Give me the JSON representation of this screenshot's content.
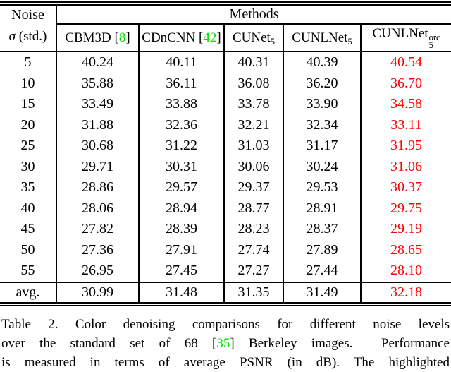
{
  "colors": {
    "best_value_red": "#fe0000",
    "citation_green": "#00e400"
  },
  "table": {
    "header": {
      "noise_line1": "Noise",
      "sigma": "σ",
      "std_suffix": " (std.)",
      "methods_label": "Methods",
      "cite_brackets": [
        "[",
        "]"
      ],
      "columns": [
        {
          "name": "CBM3D",
          "cite": "8"
        },
        {
          "name": "CDnCNN",
          "cite": "42"
        },
        {
          "name": "CUNet",
          "sub": "5"
        },
        {
          "name": "CUNLNet",
          "sub": "5"
        },
        {
          "name": "CUNLNet",
          "sub": "5",
          "sup": "orc"
        }
      ]
    },
    "rows": [
      {
        "noise": "5",
        "values": [
          "40.24",
          "40.11",
          "40.31",
          "40.39",
          "40.54"
        ]
      },
      {
        "noise": "10",
        "values": [
          "35.88",
          "36.11",
          "36.08",
          "36.20",
          "36.70"
        ]
      },
      {
        "noise": "15",
        "values": [
          "33.49",
          "33.88",
          "33.78",
          "33.90",
          "34.58"
        ]
      },
      {
        "noise": "20",
        "values": [
          "31.88",
          "32.36",
          "32.21",
          "32.34",
          "33.11"
        ]
      },
      {
        "noise": "25",
        "values": [
          "30.68",
          "31.22",
          "31.03",
          "31.17",
          "31.95"
        ]
      },
      {
        "noise": "30",
        "values": [
          "29.71",
          "30.31",
          "30.06",
          "30.24",
          "31.06"
        ]
      },
      {
        "noise": "35",
        "values": [
          "28.86",
          "29.57",
          "29.37",
          "29.53",
          "30.37"
        ]
      },
      {
        "noise": "40",
        "values": [
          "28.06",
          "28.94",
          "28.77",
          "28.91",
          "29.75"
        ]
      },
      {
        "noise": "45",
        "values": [
          "27.82",
          "28.39",
          "28.23",
          "28.37",
          "29.19"
        ]
      },
      {
        "noise": "50",
        "values": [
          "27.36",
          "27.91",
          "27.74",
          "27.89",
          "28.65"
        ]
      },
      {
        "noise": "55",
        "values": [
          "26.95",
          "27.45",
          "27.27",
          "27.44",
          "28.10"
        ]
      }
    ],
    "avg_row": {
      "noise": "avg.",
      "values": [
        "30.99",
        "31.48",
        "31.35",
        "31.49",
        "32.18"
      ]
    }
  },
  "caption": {
    "line1": "Table 2. Color denoising comparisons for different noise levels",
    "line2_prefix": "over the standard set of 68 ",
    "cite_open": "[",
    "line2_cite": "35",
    "cite_close": "]",
    "line2_suffix": " Berkeley images.  Performance",
    "line3": "is measured in terms of average PSNR (in dB). The highlighted"
  }
}
